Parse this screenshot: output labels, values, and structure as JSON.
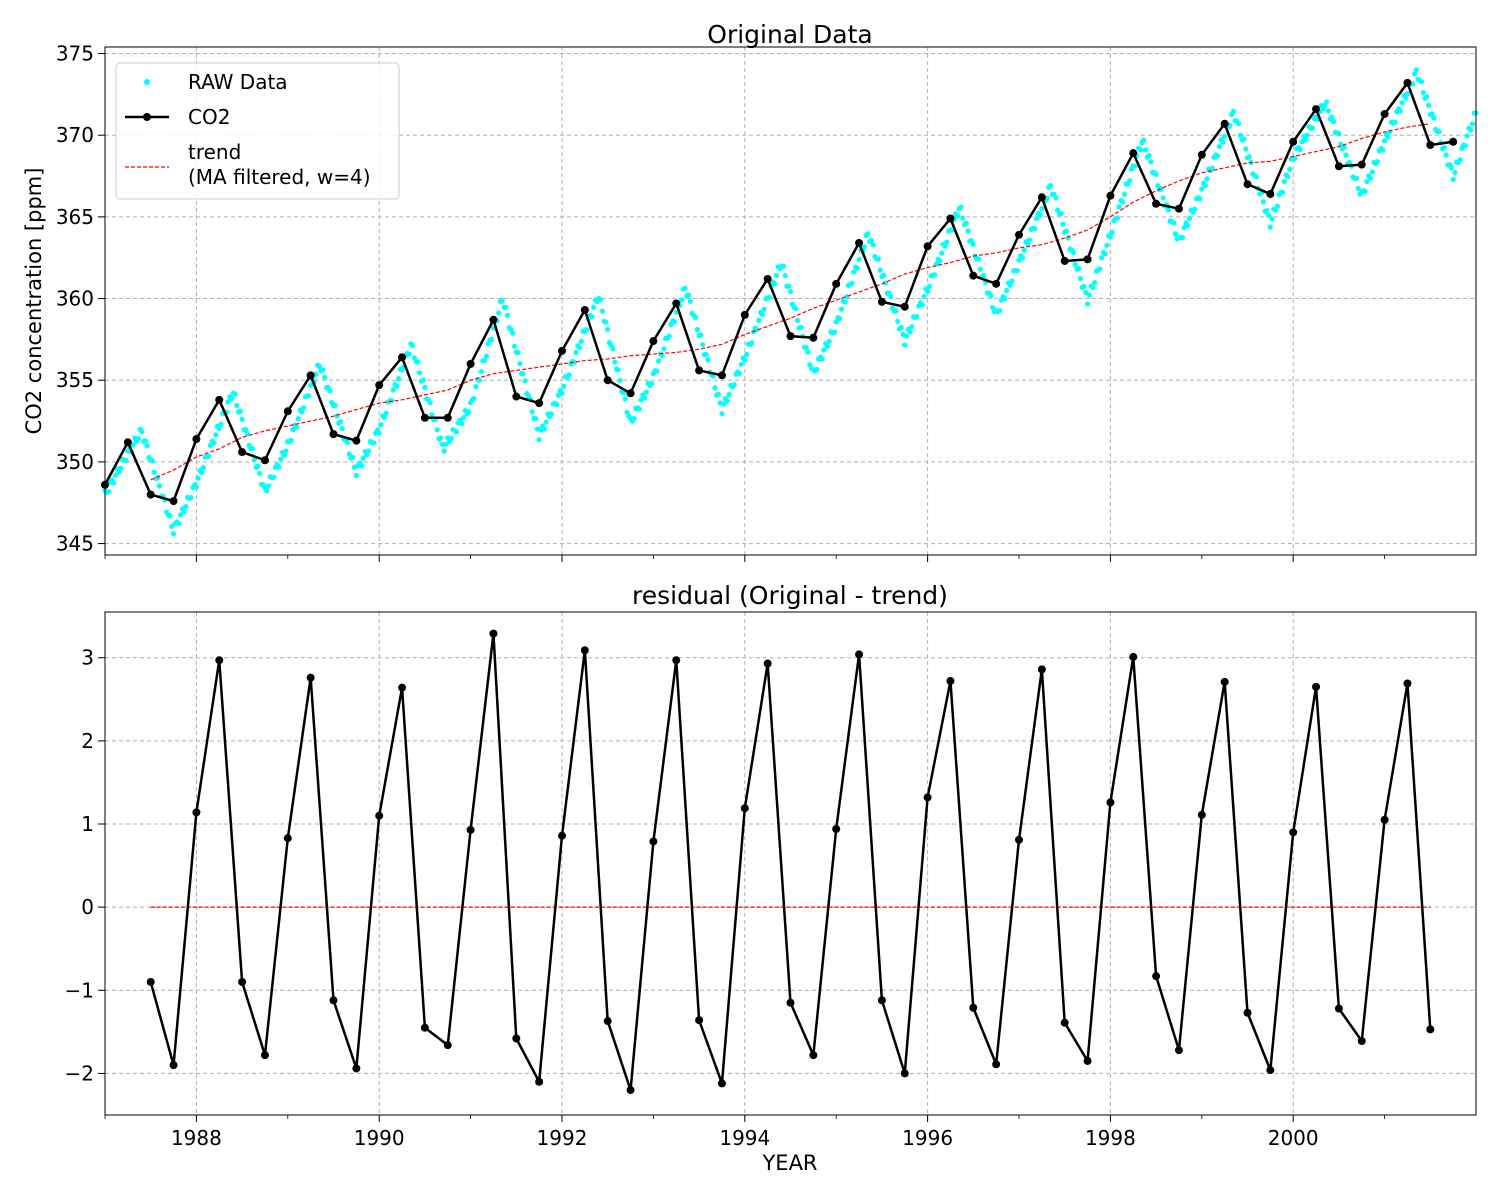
{
  "chart_data": [
    {
      "type": "line",
      "title": "Original Data",
      "xlabel": "",
      "ylabel": "CO2 concentration [ppm]",
      "xlim": [
        1987.0,
        2002.0
      ],
      "ylim": [
        344.3,
        375.4
      ],
      "xticks": [
        1988,
        1990,
        1992,
        1994,
        1996,
        1998,
        2000
      ],
      "xtick_labels": [],
      "yticks": [
        345,
        350,
        355,
        360,
        365,
        370,
        375
      ],
      "ytick_labels": [
        "345",
        "350",
        "355",
        "360",
        "365",
        "370",
        "375"
      ],
      "grid": true,
      "legend": {
        "placement": "top-left",
        "entries": [
          {
            "label": "RAW Data",
            "style": "scatter"
          },
          {
            "label": "CO2",
            "style": "line-marker"
          },
          {
            "label": "trend\n(MA filtered, w=4)",
            "lines": [
              "trend",
              "(MA filtered, w=4)"
            ],
            "style": "dashed"
          }
        ]
      },
      "raw_data": {
        "name": "RAW Data",
        "color": "#00ffff",
        "note": "weekly samples shown as cyan dots following the seasonal cycle",
        "anchors": {
          "x": [
            1987.0,
            1987.25,
            1987.4,
            1987.75,
            1988.0,
            1988.4,
            1988.75,
            1989.0,
            1989.35,
            1989.75,
            1990.0,
            1990.35,
            1990.7,
            1991.0,
            1991.35,
            1991.75,
            1992.0,
            1992.4,
            1992.75,
            1993.0,
            1993.35,
            1993.75,
            1994.0,
            1994.4,
            1994.75,
            1995.0,
            1995.35,
            1995.75,
            1996.0,
            1996.35,
            1996.75,
            1997.0,
            1997.35,
            1997.75,
            1998.0,
            1998.35,
            1998.75,
            1999.0,
            1999.35,
            1999.75,
            2000.0,
            2000.35,
            2000.75,
            2001.0,
            2001.35,
            2001.75,
            2002.0
          ],
          "y": [
            348.0,
            350.5,
            351.9,
            345.8,
            348.7,
            354.3,
            348.2,
            351.0,
            356.0,
            349.4,
            352.0,
            357.2,
            350.8,
            353.4,
            360.0,
            351.6,
            354.4,
            360.2,
            352.4,
            355.2,
            360.7,
            353.2,
            356.4,
            362.2,
            355.4,
            358.4,
            364.0,
            357.4,
            360.6,
            365.6,
            359.0,
            362.2,
            366.9,
            359.9,
            363.9,
            369.7,
            363.5,
            366.6,
            371.4,
            364.6,
            368.6,
            372.0,
            366.3,
            369.6,
            373.9,
            367.5,
            371.4
          ]
        }
      },
      "series": [
        {
          "name": "CO2",
          "color": "#000000",
          "x": [
            1987.0,
            1987.25,
            1987.5,
            1987.75,
            1988.0,
            1988.25,
            1988.5,
            1988.75,
            1989.0,
            1989.25,
            1989.5,
            1989.75,
            1990.0,
            1990.25,
            1990.5,
            1990.75,
            1991.0,
            1991.25,
            1991.5,
            1991.75,
            1992.0,
            1992.25,
            1992.5,
            1992.75,
            1993.0,
            1993.25,
            1993.5,
            1993.75,
            1994.0,
            1994.25,
            1994.5,
            1994.75,
            1995.0,
            1995.25,
            1995.5,
            1995.75,
            1996.0,
            1996.25,
            1996.5,
            1996.75,
            1997.0,
            1997.25,
            1997.5,
            1997.75,
            1998.0,
            1998.25,
            1998.5,
            1998.75,
            1999.0,
            1999.25,
            1999.5,
            1999.75,
            2000.0,
            2000.25,
            2000.5,
            2000.75,
            2001.0,
            2001.25,
            2001.5,
            2001.75
          ],
          "y": [
            348.6,
            351.2,
            348.0,
            347.6,
            351.4,
            353.8,
            350.6,
            350.1,
            353.1,
            355.3,
            351.7,
            351.3,
            354.7,
            356.4,
            352.7,
            352.7,
            356.0,
            358.7,
            354.0,
            353.6,
            356.8,
            359.3,
            355.0,
            354.2,
            357.4,
            359.7,
            355.6,
            355.3,
            359.0,
            361.2,
            357.7,
            357.6,
            360.9,
            363.4,
            359.8,
            359.5,
            363.2,
            364.9,
            361.4,
            360.9,
            363.9,
            366.2,
            362.3,
            362.4,
            366.3,
            368.9,
            365.8,
            365.5,
            368.8,
            370.7,
            367.0,
            366.4,
            369.6,
            371.6,
            368.1,
            368.2,
            371.3,
            373.2,
            369.4,
            369.6
          ]
        },
        {
          "name": "trend\n(MA filtered, w=4)",
          "color": "#ff0000",
          "x": [
            1987.5,
            1987.75,
            1988.0,
            1988.25,
            1988.5,
            1988.75,
            1989.0,
            1989.25,
            1989.5,
            1989.75,
            1990.0,
            1990.25,
            1990.5,
            1990.75,
            1991.0,
            1991.25,
            1991.5,
            1991.75,
            1992.0,
            1992.25,
            1992.5,
            1992.75,
            1993.0,
            1993.25,
            1993.5,
            1993.75,
            1994.0,
            1994.25,
            1994.5,
            1994.75,
            1995.0,
            1995.25,
            1995.5,
            1995.75,
            1996.0,
            1996.25,
            1996.5,
            1996.75,
            1997.0,
            1997.25,
            1997.5,
            1997.75,
            1998.0,
            1998.25,
            1998.5,
            1998.75,
            1999.0,
            1999.25,
            1999.5,
            1999.75,
            2000.0,
            2000.25,
            2000.5,
            2000.75,
            2001.0,
            2001.25,
            2001.5
          ],
          "y": [
            348.9,
            349.5,
            350.3,
            350.8,
            351.5,
            351.9,
            352.2,
            352.5,
            352.8,
            353.2,
            353.6,
            353.8,
            354.1,
            354.4,
            355.0,
            355.4,
            355.6,
            355.8,
            356.0,
            356.2,
            356.3,
            356.5,
            356.6,
            356.7,
            356.9,
            357.2,
            357.8,
            358.3,
            358.8,
            359.4,
            359.9,
            360.4,
            360.9,
            361.5,
            361.9,
            362.2,
            362.6,
            362.8,
            363.1,
            363.3,
            363.7,
            364.2,
            365.0,
            365.9,
            366.6,
            367.2,
            367.7,
            368.0,
            368.3,
            368.4,
            368.7,
            369.0,
            369.3,
            369.8,
            370.2,
            370.5,
            370.7
          ]
        }
      ]
    },
    {
      "type": "line",
      "title": "residual (Original - trend)",
      "xlabel": "YEAR",
      "ylabel": "",
      "xlim": [
        1987.0,
        2002.0
      ],
      "ylim": [
        -2.5,
        3.55
      ],
      "xticks": [
        1988,
        1990,
        1992,
        1994,
        1996,
        1998,
        2000
      ],
      "xtick_labels": [
        "1988",
        "1990",
        "1992",
        "1994",
        "1996",
        "1998",
        "2000"
      ],
      "yticks": [
        -2,
        -1,
        0,
        1,
        2,
        3
      ],
      "ytick_labels": [
        "−2",
        "−1",
        "0",
        "1",
        "2",
        "3"
      ],
      "grid": true,
      "series": [
        {
          "name": "residual",
          "color": "#000000",
          "x": [
            1987.5,
            1987.75,
            1988.0,
            1988.25,
            1988.5,
            1988.75,
            1989.0,
            1989.25,
            1989.5,
            1989.75,
            1990.0,
            1990.25,
            1990.5,
            1990.75,
            1991.0,
            1991.25,
            1991.5,
            1991.75,
            1992.0,
            1992.25,
            1992.5,
            1992.75,
            1993.0,
            1993.25,
            1993.5,
            1993.75,
            1994.0,
            1994.25,
            1994.5,
            1994.75,
            1995.0,
            1995.25,
            1995.5,
            1995.75,
            1996.0,
            1996.25,
            1996.5,
            1996.75,
            1997.0,
            1997.25,
            1997.5,
            1997.75,
            1998.0,
            1998.25,
            1998.5,
            1998.75,
            1999.0,
            1999.25,
            1999.5,
            1999.75,
            2000.0,
            2000.25,
            2000.5,
            2000.75,
            2001.0,
            2001.25,
            2001.5
          ],
          "y": [
            -0.9,
            -1.9,
            1.14,
            2.97,
            -0.9,
            -1.78,
            0.83,
            2.76,
            -1.12,
            -1.94,
            1.1,
            2.64,
            -1.45,
            -1.66,
            0.93,
            3.29,
            -1.58,
            -2.1,
            0.86,
            3.09,
            -1.37,
            -2.2,
            0.79,
            2.97,
            -1.36,
            -2.12,
            1.19,
            2.93,
            -1.15,
            -1.78,
            0.94,
            3.04,
            -1.12,
            -2.0,
            1.32,
            2.72,
            -1.21,
            -1.89,
            0.81,
            2.86,
            -1.39,
            -1.85,
            1.26,
            3.01,
            -0.83,
            -1.72,
            1.11,
            2.71,
            -1.27,
            -1.96,
            0.9,
            2.65,
            -1.22,
            -1.61,
            1.05,
            2.69,
            -1.47
          ]
        },
        {
          "name": "zero",
          "color": "#ff0000",
          "x": [
            1987.5,
            2001.5
          ],
          "y": [
            0,
            0
          ]
        }
      ]
    }
  ]
}
